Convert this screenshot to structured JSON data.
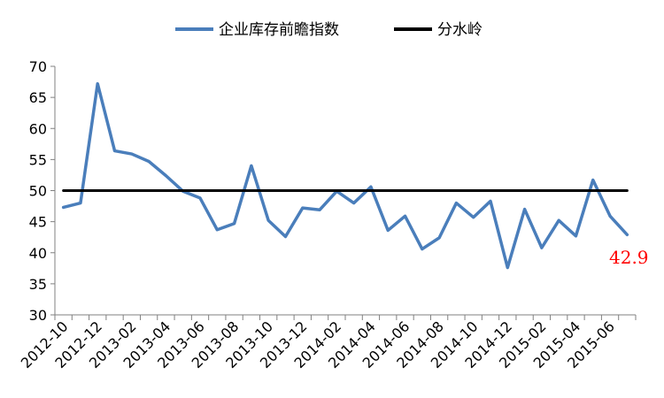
{
  "chart_data": {
    "type": "line",
    "x": [
      "2012-10",
      "2012-11",
      "2012-12",
      "2013-01",
      "2013-02",
      "2013-03",
      "2013-04",
      "2013-05",
      "2013-06",
      "2013-07",
      "2013-08",
      "2013-09",
      "2013-10",
      "2013-11",
      "2013-12",
      "2014-01",
      "2014-02",
      "2014-03",
      "2014-04",
      "2014-05",
      "2014-06",
      "2014-07",
      "2014-08",
      "2014-09",
      "2014-10",
      "2014-11",
      "2014-12",
      "2015-01",
      "2015-02",
      "2015-03",
      "2015-04",
      "2015-05",
      "2015-06",
      "2015-07"
    ],
    "x_tick_labels": [
      "2012-10",
      "2012-12",
      "2013-02",
      "2013-04",
      "2013-06",
      "2013-08",
      "2013-10",
      "2013-12",
      "2014-02",
      "2014-04",
      "2014-06",
      "2014-08",
      "2014-10",
      "2014-12",
      "2015-02",
      "2015-04",
      "2015-06"
    ],
    "series": [
      {
        "name": "企业库存前瞻指数",
        "color": "#4a7ebb",
        "values": [
          47.3,
          48.0,
          67.2,
          56.4,
          55.9,
          54.7,
          52.4,
          49.9,
          48.8,
          43.7,
          44.7,
          54.0,
          45.2,
          42.6,
          47.2,
          46.9,
          49.9,
          48.0,
          50.6,
          43.6,
          45.9,
          40.6,
          42.4,
          48.0,
          45.7,
          48.3,
          37.6,
          47.0,
          40.8,
          45.2,
          42.7,
          51.7,
          45.9,
          42.9
        ]
      },
      {
        "name": "分水岭",
        "color": "#000000",
        "values": [
          50,
          50,
          50,
          50,
          50,
          50,
          50,
          50,
          50,
          50,
          50,
          50,
          50,
          50,
          50,
          50,
          50,
          50,
          50,
          50,
          50,
          50,
          50,
          50,
          50,
          50,
          50,
          50,
          50,
          50,
          50,
          50,
          50,
          50
        ]
      }
    ],
    "ylim": [
      30,
      70
    ],
    "yticks": [
      30,
      35,
      40,
      45,
      50,
      55,
      60,
      65,
      70
    ],
    "grid": false,
    "legend": "top",
    "annotation": {
      "text": "42.9",
      "color": "#ff0000"
    }
  }
}
